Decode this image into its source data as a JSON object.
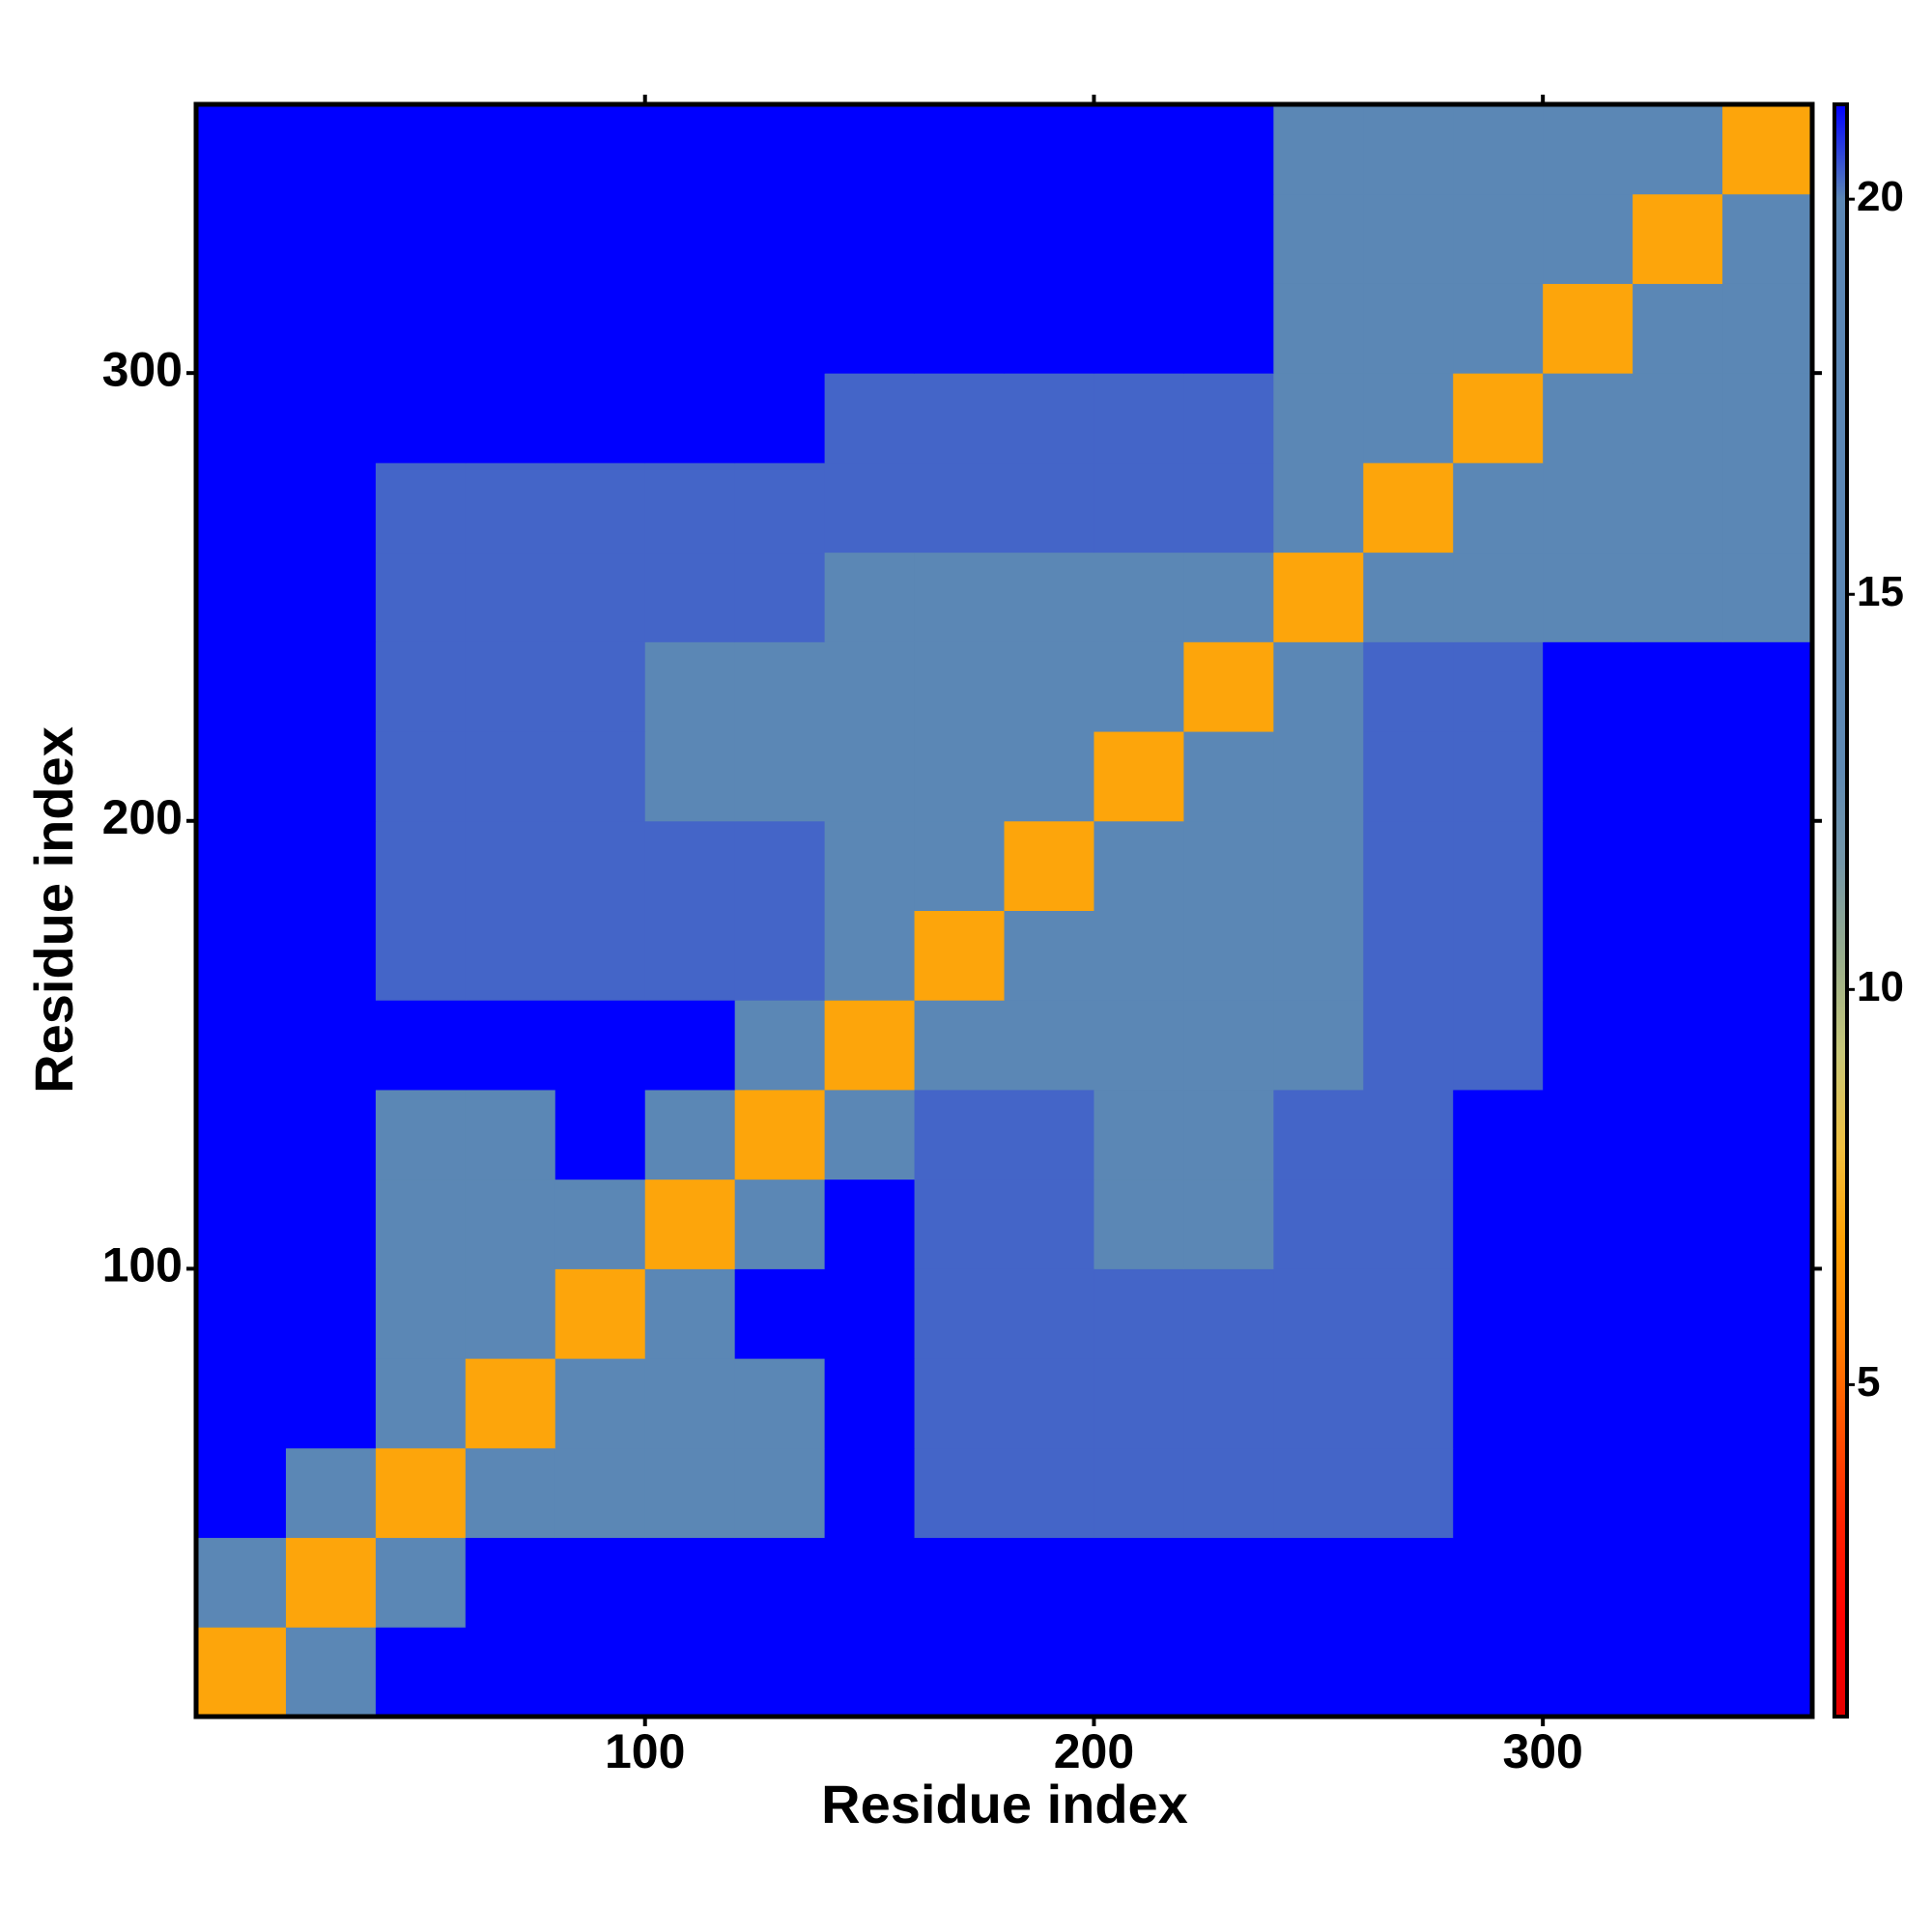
{
  "chart_data": {
    "type": "heatmap",
    "x_label": "Residue index",
    "y_label": "Residue index",
    "xbins": [
      0,
      20,
      40,
      60,
      80,
      100,
      120,
      140,
      160,
      180,
      200,
      220,
      240,
      260,
      280,
      300,
      320,
      340,
      360
    ],
    "ybins": [
      0,
      20,
      40,
      60,
      80,
      100,
      120,
      140,
      160,
      180,
      200,
      220,
      240,
      260,
      280,
      300,
      320,
      340,
      360
    ],
    "xlim": [
      0,
      360
    ],
    "ylim": [
      0,
      360
    ],
    "xticks": [
      100,
      200,
      300
    ],
    "yticks": [
      100,
      200,
      300
    ],
    "zlim": [
      0.8,
      21.2
    ],
    "colorbar_ticks": [
      5,
      10,
      15,
      20
    ],
    "colors": [
      "#e60000",
      "#ff0000",
      "#ff2000",
      "#ff5000",
      "#ff8000",
      "#ffa000",
      "#f0c040",
      "#c8c878",
      "#98ae8c",
      "#7497a8",
      "#5f8ab4",
      "#5b87b5",
      "#5b87b5",
      "#5b87b5",
      "#5b87b5",
      "#5b87b5",
      "#5b87b5",
      "#0000ff"
    ],
    "values": [
      [
        7,
        15,
        21.2,
        21.2,
        21.2,
        21.2,
        21.2,
        21.2,
        21.2,
        21.2,
        21.2,
        21.2,
        21.2,
        21.2,
        21.2,
        21.2,
        21.2,
        21.2
      ],
      [
        15,
        7,
        15,
        21.2,
        21.2,
        21.2,
        21.2,
        21.2,
        21.2,
        21.2,
        21.2,
        21.2,
        21.2,
        21.2,
        21.2,
        21.2,
        21.2,
        21.2
      ],
      [
        21.2,
        15,
        7,
        15,
        17,
        17,
        17,
        21.2,
        20.3,
        20.3,
        20.3,
        20.3,
        20.3,
        20.3,
        21.2,
        21.2,
        21.2,
        21.2
      ],
      [
        21.2,
        21.2,
        15,
        7,
        15,
        17,
        17,
        21.2,
        20.3,
        20.3,
        20.3,
        20.3,
        20.3,
        20.3,
        21.2,
        21.2,
        21.2,
        21.2
      ],
      [
        21.2,
        21.2,
        17,
        15,
        7,
        15,
        21.2,
        21.2,
        20.3,
        20.3,
        20.3,
        20.3,
        20.3,
        20.3,
        21.2,
        21.2,
        21.2,
        21.2
      ],
      [
        21.2,
        21.2,
        17,
        17,
        15,
        7,
        15,
        21.2,
        20.3,
        20.3,
        18,
        18,
        20.3,
        20.3,
        21.2,
        21.2,
        21.2,
        21.2
      ],
      [
        21.2,
        21.2,
        17,
        17,
        21.2,
        15,
        7,
        15,
        20.3,
        20.3,
        18,
        18,
        20.3,
        20.3,
        21.2,
        21.2,
        21.2,
        21.2
      ],
      [
        21.2,
        21.2,
        21.2,
        21.2,
        21.2,
        21.2,
        15,
        7,
        15,
        17,
        16,
        16,
        16,
        20.3,
        20.3,
        21.2,
        21.2,
        21.2
      ],
      [
        21.2,
        21.2,
        20.3,
        20.3,
        20.3,
        20.3,
        20.3,
        15,
        7,
        15,
        16,
        16,
        16,
        20.3,
        20.3,
        21.2,
        21.2,
        21.2
      ],
      [
        21.2,
        21.2,
        20.3,
        20.3,
        20.3,
        20.3,
        20.3,
        17,
        15,
        7,
        15,
        16,
        16,
        20.3,
        20.3,
        21.2,
        21.2,
        21.2
      ],
      [
        21.2,
        21.2,
        20.3,
        20.3,
        20.3,
        18,
        18,
        16,
        16,
        15,
        7,
        15,
        17,
        20.3,
        20.3,
        21.2,
        21.2,
        21.2
      ],
      [
        21.2,
        21.2,
        20.3,
        20.3,
        20.3,
        18,
        18,
        16,
        16,
        16,
        15,
        7,
        15,
        20.3,
        20.3,
        21.2,
        21.2,
        21.2
      ],
      [
        21.2,
        21.2,
        20.3,
        20.3,
        20.3,
        20.3,
        20.3,
        16,
        16,
        16,
        17,
        15,
        7,
        15,
        17,
        17,
        19.5,
        19.5
      ],
      [
        21.2,
        21.2,
        20.3,
        20.3,
        20.3,
        20.3,
        20.3,
        20.3,
        20.3,
        20.3,
        20.3,
        20.3,
        15,
        7,
        15,
        17,
        17,
        17
      ],
      [
        21.2,
        21.2,
        21.2,
        21.2,
        21.2,
        21.2,
        21.2,
        20.3,
        20.3,
        20.3,
        20.3,
        20.3,
        17,
        15,
        7,
        15,
        17,
        17
      ],
      [
        21.2,
        21.2,
        21.2,
        21.2,
        21.2,
        21.2,
        21.2,
        21.2,
        21.2,
        21.2,
        21.2,
        21.2,
        17,
        17,
        15,
        7,
        15,
        17
      ],
      [
        21.2,
        21.2,
        21.2,
        21.2,
        21.2,
        21.2,
        21.2,
        21.2,
        21.2,
        21.2,
        21.2,
        21.2,
        19.5,
        17,
        17,
        15,
        7,
        15
      ],
      [
        21.2,
        21.2,
        21.2,
        21.2,
        21.2,
        21.2,
        21.2,
        21.2,
        21.2,
        21.2,
        21.2,
        21.2,
        19.5,
        17,
        17,
        17,
        15,
        7
      ]
    ]
  }
}
